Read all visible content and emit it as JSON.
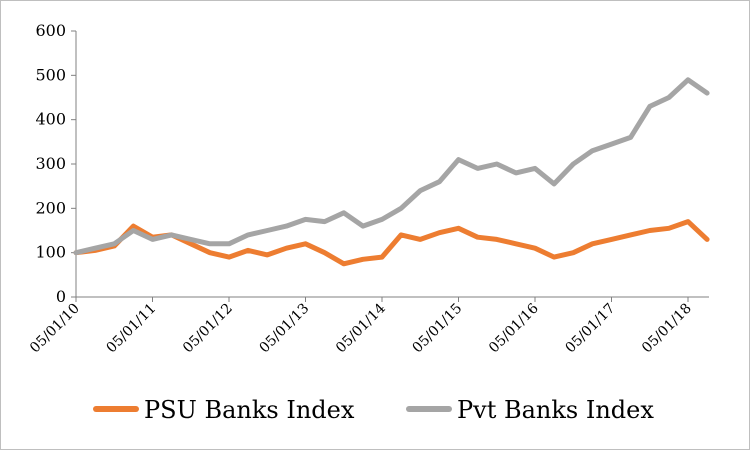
{
  "chart_data": {
    "type": "line",
    "title": "",
    "xlabel": "",
    "ylabel": "",
    "ylim": [
      0,
      600
    ],
    "yticks": [
      "0",
      "100",
      "200",
      "300",
      "400",
      "500",
      "600"
    ],
    "xticks": [
      "05/01/10",
      "05/01/11",
      "05/01/12",
      "05/01/13",
      "05/01/14",
      "05/01/15",
      "05/01/16",
      "05/01/17",
      "05/01/18"
    ],
    "x": [
      "05/01/10",
      "05/04/10",
      "05/07/10",
      "05/10/10",
      "05/01/11",
      "05/04/11",
      "05/07/11",
      "05/10/11",
      "05/01/12",
      "05/04/12",
      "05/07/12",
      "05/10/12",
      "05/01/13",
      "05/04/13",
      "05/07/13",
      "05/10/13",
      "05/01/14",
      "05/04/14",
      "05/07/14",
      "05/10/14",
      "05/01/15",
      "05/04/15",
      "05/07/15",
      "05/10/15",
      "05/01/16",
      "05/04/16",
      "05/07/16",
      "05/10/16",
      "05/01/17",
      "05/04/17",
      "05/07/17",
      "05/10/17",
      "05/01/18",
      "05/04/18"
    ],
    "series": [
      {
        "name": "PSU Banks Index",
        "color": "#ed7d31",
        "values": [
          100,
          105,
          115,
          160,
          135,
          140,
          120,
          100,
          90,
          105,
          95,
          110,
          120,
          100,
          75,
          85,
          90,
          140,
          130,
          145,
          155,
          135,
          130,
          120,
          110,
          90,
          100,
          120,
          130,
          140,
          150,
          155,
          170,
          130
        ]
      },
      {
        "name": "Pvt Banks Index",
        "color": "#a5a5a5",
        "values": [
          100,
          110,
          120,
          150,
          130,
          140,
          130,
          120,
          120,
          140,
          150,
          160,
          175,
          170,
          190,
          160,
          175,
          200,
          240,
          260,
          310,
          290,
          300,
          280,
          290,
          255,
          300,
          330,
          345,
          360,
          430,
          450,
          490,
          460
        ]
      }
    ],
    "legend_position": "bottom",
    "grid": false
  }
}
